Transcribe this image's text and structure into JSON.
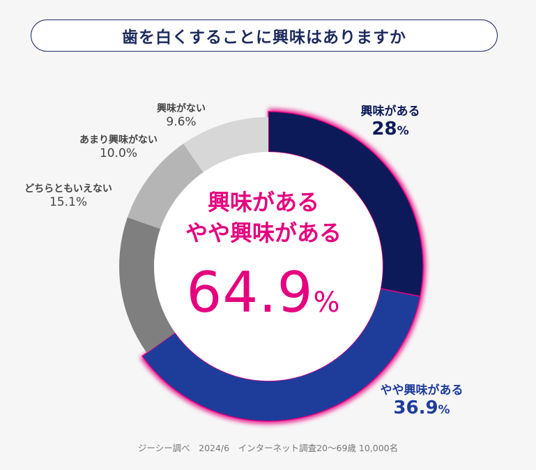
{
  "title": "歯を白くすることに興味はありますか",
  "chart_data": {
    "type": "pie",
    "categories": [
      "興味がある",
      "やや興味がある",
      "どちらともいえない",
      "あまり興味がない",
      "興味がない"
    ],
    "values": [
      28,
      36.9,
      15.1,
      10.0,
      9.6
    ],
    "value_labels": [
      "28",
      "36.9",
      "15.1%",
      "10.0%",
      "9.6%"
    ],
    "unit": "%",
    "colors": [
      "#0c1a5a",
      "#1e3d9a",
      "#7f7f7f",
      "#b5b5b5",
      "#d7d7d7"
    ],
    "highlight_color": "#e5007e",
    "center": {
      "line1": "興味がある",
      "line2": "やや興味がある",
      "value": "64.9",
      "unit": "%"
    }
  },
  "source": "ジーシー調べ　2024/6　インターネット調査20～69歳 10,000名"
}
